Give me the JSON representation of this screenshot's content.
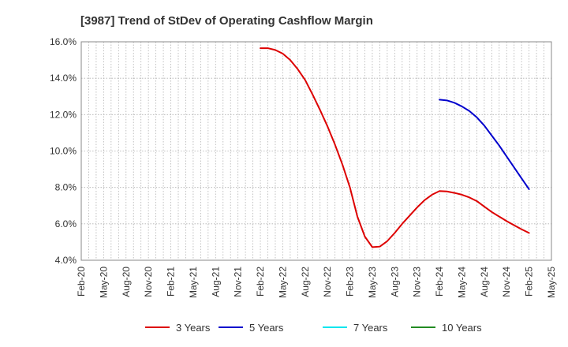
{
  "chart_data": {
    "type": "line",
    "title": "[3987]  Trend of StDev of Operating Cashflow Margin",
    "xlabel": "",
    "ylabel": "",
    "ylim": [
      4.0,
      16.0
    ],
    "y_ticks": [
      "4.0%",
      "6.0%",
      "8.0%",
      "10.0%",
      "12.0%",
      "14.0%",
      "16.0%"
    ],
    "x_range": [
      "2020-02",
      "2025-05"
    ],
    "x_ticks": [
      "Feb-20",
      "May-20",
      "Aug-20",
      "Nov-20",
      "Feb-21",
      "May-21",
      "Aug-21",
      "Nov-21",
      "Feb-22",
      "May-22",
      "Aug-22",
      "Nov-22",
      "Feb-23",
      "May-23",
      "Aug-23",
      "Nov-23",
      "Feb-24",
      "May-24",
      "Aug-24",
      "Nov-24",
      "Feb-25",
      "May-25"
    ],
    "grid": true,
    "legend_position": "bottom",
    "series": [
      {
        "name": "3 Years",
        "color": "#dd0000",
        "points": [
          [
            "2022-02",
            15.65
          ],
          [
            "2022-03",
            15.65
          ],
          [
            "2022-04",
            15.55
          ],
          [
            "2022-05",
            15.35
          ],
          [
            "2022-06",
            15.0
          ],
          [
            "2022-07",
            14.5
          ],
          [
            "2022-08",
            13.9
          ],
          [
            "2022-09",
            13.1
          ],
          [
            "2022-10",
            12.25
          ],
          [
            "2022-11",
            11.35
          ],
          [
            "2022-12",
            10.35
          ],
          [
            "2023-01",
            9.25
          ],
          [
            "2023-02",
            8.0
          ],
          [
            "2023-03",
            6.4
          ],
          [
            "2023-04",
            5.3
          ],
          [
            "2023-05",
            4.72
          ],
          [
            "2023-06",
            4.75
          ],
          [
            "2023-07",
            5.05
          ],
          [
            "2023-08",
            5.5
          ],
          [
            "2023-09",
            6.0
          ],
          [
            "2023-10",
            6.45
          ],
          [
            "2023-11",
            6.9
          ],
          [
            "2023-12",
            7.3
          ],
          [
            "2024-01",
            7.6
          ],
          [
            "2024-02",
            7.8
          ],
          [
            "2024-03",
            7.78
          ],
          [
            "2024-04",
            7.7
          ],
          [
            "2024-05",
            7.6
          ],
          [
            "2024-06",
            7.45
          ],
          [
            "2024-07",
            7.25
          ],
          [
            "2024-08",
            6.95
          ],
          [
            "2024-09",
            6.65
          ],
          [
            "2024-10",
            6.4
          ],
          [
            "2024-11",
            6.15
          ],
          [
            "2024-12",
            5.92
          ],
          [
            "2025-01",
            5.7
          ],
          [
            "2025-02",
            5.5
          ]
        ]
      },
      {
        "name": "5 Years",
        "color": "#0000cc",
        "points": [
          [
            "2024-02",
            12.82
          ],
          [
            "2024-03",
            12.78
          ],
          [
            "2024-04",
            12.65
          ],
          [
            "2024-05",
            12.45
          ],
          [
            "2024-06",
            12.2
          ],
          [
            "2024-07",
            11.85
          ],
          [
            "2024-08",
            11.4
          ],
          [
            "2024-09",
            10.85
          ],
          [
            "2024-10",
            10.3
          ],
          [
            "2024-11",
            9.7
          ],
          [
            "2024-12",
            9.1
          ],
          [
            "2025-01",
            8.5
          ],
          [
            "2025-02",
            7.9
          ]
        ]
      },
      {
        "name": "7 Years",
        "color": "#00e5ee",
        "points": []
      },
      {
        "name": "10 Years",
        "color": "#228b22",
        "points": []
      }
    ]
  }
}
